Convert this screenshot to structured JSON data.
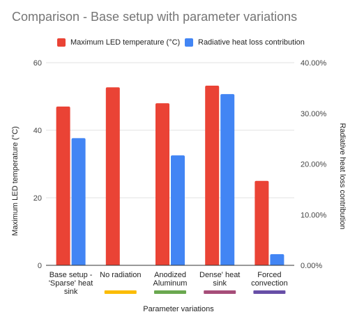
{
  "chart_data": {
    "type": "bar",
    "title": "Comparison - Base setup with parameter variations",
    "xlabel": "Parameter variations",
    "categories": [
      [
        "Base setup -",
        "'Sparse' heat",
        "sink"
      ],
      [
        "No radiation"
      ],
      [
        "Anodized",
        "Aluminum"
      ],
      [
        "Dense' heat",
        "sink"
      ],
      [
        "Forced",
        "convection"
      ]
    ],
    "category_underline_colors": [
      null,
      "#fbbc04",
      "#6aa84f",
      "#a64d79",
      "#674ea7"
    ],
    "y_left": {
      "label": "Maximum LED temperature (°C)",
      "range": [
        0,
        60
      ],
      "ticks": [
        "0",
        "20",
        "40",
        "60"
      ]
    },
    "y_right": {
      "label": "Radiative heat loss contribution",
      "range": [
        0,
        40
      ],
      "ticks": [
        "0.00%",
        "10.00%",
        "20.00%",
        "30.00%",
        "40.00%"
      ]
    },
    "series": [
      {
        "name": "Maximum LED temperature (°C)",
        "axis": "left",
        "color": "#ea4335",
        "values": [
          47,
          52.7,
          48,
          53.2,
          25
        ]
      },
      {
        "name": "Radiative heat loss contribution",
        "axis": "right",
        "color": "#4285f4",
        "values": [
          25.1,
          0,
          21.7,
          33.8,
          2.2
        ]
      }
    ],
    "grid": true,
    "legend_position": "top"
  }
}
